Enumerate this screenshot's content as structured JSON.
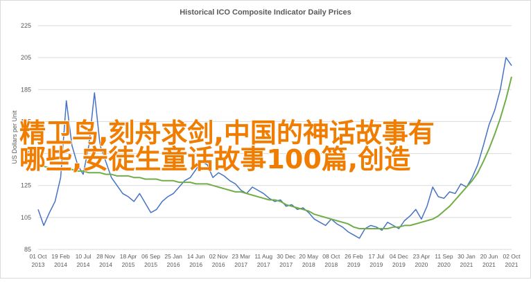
{
  "chart_data": {
    "type": "line",
    "title": "Historical ICO Composite Indicator Daily Prices",
    "y_label": "US Dollars per Unit",
    "annotations": [
      "精卫鸟,刻舟求剑,中国的神话故事有",
      "哪些,安徒生童话故事100篇,创造"
    ],
    "categories": [
      "01 Oct 2013",
      null,
      null,
      null,
      "19 Feb 2014",
      null,
      null,
      null,
      "10 Jul 2014",
      null,
      null,
      null,
      "28 Nov 2014",
      null,
      null,
      null,
      "18 Apr 2015",
      null,
      null,
      null,
      "06 Sep 2015",
      null,
      null,
      null,
      "25 Jan 2016",
      null,
      null,
      null,
      "14 Jun 2016",
      null,
      null,
      null,
      "02 Nov 2016",
      null,
      null,
      null,
      "23 Mar 2017",
      null,
      null,
      null,
      "11 Aug 2017",
      null,
      null,
      null,
      "30 Dec 2017",
      null,
      null,
      null,
      "20 May 2018",
      null,
      null,
      null,
      "08 Oct 2018",
      null,
      null,
      null,
      "26 Feb 2019",
      null,
      null,
      null,
      "17 Jul 2019",
      null,
      null,
      null,
      "04 Dec 2019",
      null,
      null,
      null,
      "23 Apr 2020",
      null,
      null,
      null,
      "11 Sep 2020",
      null,
      null,
      null,
      "30 Jan 2021",
      null,
      null,
      null,
      "20 Jun 2021",
      null,
      null,
      null,
      "02 Oct 2021"
    ],
    "series": [
      {
        "color": "#4472c4",
        "values": [
          110,
          100,
          108,
          115,
          130,
          178,
          150,
          138,
          132,
          150,
          183,
          150,
          140,
          130,
          125,
          120,
          118,
          115,
          120,
          114,
          108,
          110,
          115,
          118,
          120,
          124,
          128,
          130,
          135,
          140,
          138,
          130,
          133,
          131,
          128,
          126,
          122,
          120,
          124,
          122,
          120,
          117,
          115,
          116,
          112,
          113,
          110,
          111,
          108,
          104,
          102,
          100,
          104,
          101,
          99,
          96,
          94,
          92,
          98,
          100,
          99,
          97,
          102,
          100,
          98,
          103,
          106,
          110,
          104,
          112,
          124,
          118,
          117,
          121,
          120,
          126,
          124,
          130,
          138,
          150,
          163,
          172,
          185,
          205,
          200
        ]
      },
      {
        "color": "#70ad47",
        "values": [
          137,
          137,
          136,
          136,
          135,
          135,
          135,
          134,
          134,
          133,
          133,
          133,
          132,
          132,
          131,
          131,
          131,
          130,
          130,
          129,
          129,
          129,
          128,
          128,
          128,
          127,
          127,
          127,
          126,
          126,
          126,
          125,
          124,
          123,
          122,
          121,
          121,
          120,
          119,
          118,
          117,
          116,
          116,
          115,
          113,
          112,
          111,
          110,
          109,
          107,
          106,
          105,
          104,
          103,
          102,
          101,
          99,
          98,
          98,
          98,
          98,
          98,
          98,
          99,
          99,
          100,
          100,
          101,
          102,
          103,
          104,
          106,
          109,
          112,
          116,
          120,
          124,
          128,
          133,
          140,
          148,
          157,
          167,
          179,
          193
        ]
      }
    ],
    "ylim": [
      85,
      225
    ],
    "yticks": [
      85,
      105,
      125,
      145,
      165,
      185,
      205,
      225
    ],
    "grid": true
  }
}
